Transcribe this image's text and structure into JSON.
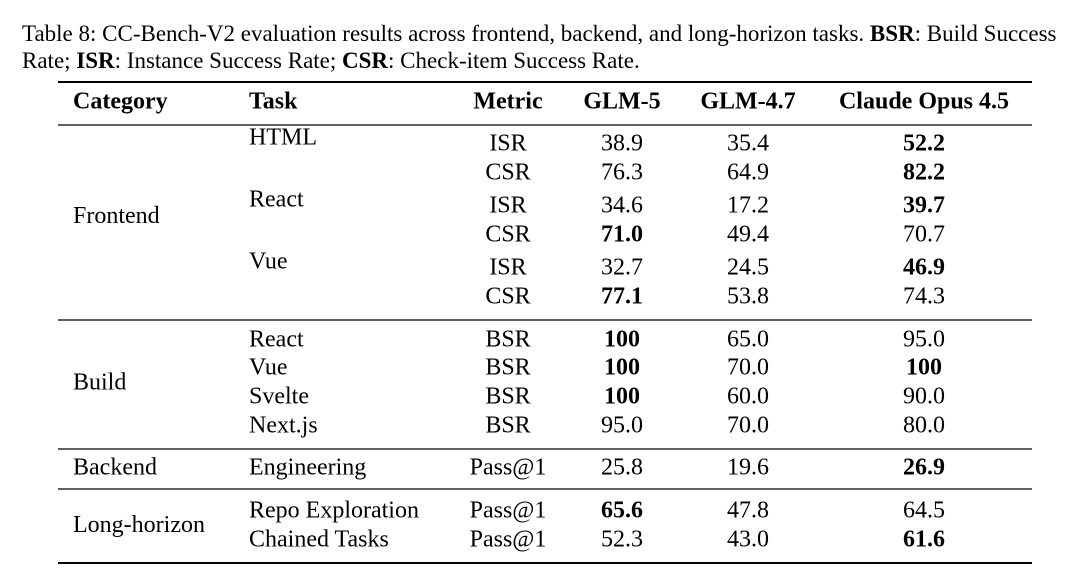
{
  "caption": {
    "label": "Table 8:",
    "text": "CC-Bench-V2 evaluation results across frontend, backend, and long-horizon tasks.",
    "definitions": [
      {
        "term": "BSR",
        "text": ": Build Success Rate;"
      },
      {
        "term": "ISR",
        "text": ": Instance Success Rate;"
      },
      {
        "term": "CSR",
        "text": ": Check-item Success Rate."
      }
    ]
  },
  "table": {
    "columns": [
      "Category",
      "Task",
      "Metric",
      "GLM-5",
      "GLM-4.7",
      "Claude Opus 4.5"
    ],
    "groups": [
      {
        "category": "Frontend",
        "rows": [
          {
            "task": "HTML",
            "metric": "ISR",
            "values": [
              "38.9",
              "35.4",
              "52.2"
            ],
            "bold": [
              2
            ]
          },
          {
            "metric": "CSR",
            "values": [
              "76.3",
              "64.9",
              "82.2"
            ],
            "bold": [
              2
            ]
          },
          {
            "task": "React",
            "metric": "ISR",
            "values": [
              "34.6",
              "17.2",
              "39.7"
            ],
            "bold": [
              2
            ]
          },
          {
            "metric": "CSR",
            "values": [
              "71.0",
              "49.4",
              "70.7"
            ],
            "bold": [
              0
            ]
          },
          {
            "task": "Vue",
            "metric": "ISR",
            "values": [
              "32.7",
              "24.5",
              "46.9"
            ],
            "bold": [
              2
            ]
          },
          {
            "metric": "CSR",
            "values": [
              "77.1",
              "53.8",
              "74.3"
            ],
            "bold": [
              0
            ]
          }
        ]
      },
      {
        "category": "Build",
        "rows": [
          {
            "task": "React",
            "metric": "BSR",
            "values": [
              "100",
              "65.0",
              "95.0"
            ],
            "bold": [
              0
            ]
          },
          {
            "task": "Vue",
            "metric": "BSR",
            "values": [
              "100",
              "70.0",
              "100"
            ],
            "bold": [
              0,
              2
            ]
          },
          {
            "task": "Svelte",
            "metric": "BSR",
            "values": [
              "100",
              "60.0",
              "90.0"
            ],
            "bold": [
              0
            ]
          },
          {
            "task": "Next.js",
            "metric": "BSR",
            "values": [
              "95.0",
              "70.0",
              "80.0"
            ],
            "bold": []
          }
        ]
      },
      {
        "category": "Backend",
        "rows": [
          {
            "task": "Engineering",
            "metric": "Pass@1",
            "values": [
              "25.8",
              "19.6",
              "26.9"
            ],
            "bold": [
              2
            ]
          }
        ]
      },
      {
        "category": "Long-horizon",
        "rows": [
          {
            "task": "Repo Exploration",
            "metric": "Pass@1",
            "values": [
              "65.6",
              "47.8",
              "64.5"
            ],
            "bold": [
              0
            ]
          },
          {
            "task": "Chained Tasks",
            "metric": "Pass@1",
            "values": [
              "52.3",
              "43.0",
              "61.6"
            ],
            "bold": [
              2
            ]
          }
        ]
      }
    ]
  }
}
